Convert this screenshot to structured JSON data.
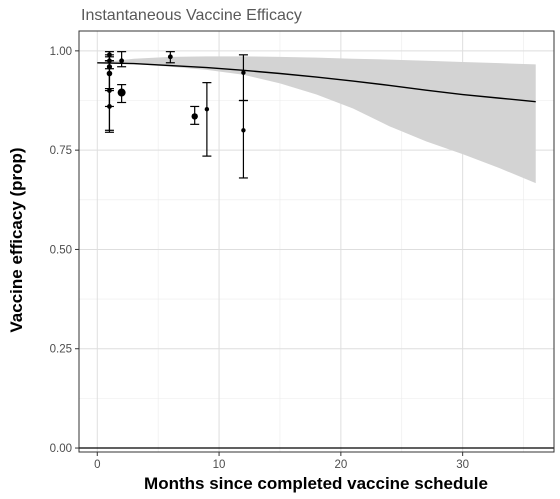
{
  "chart_data": {
    "type": "line",
    "title": "Instantaneous Vaccine Efficacy",
    "xlabel": "Months since completed vaccine schedule",
    "ylabel": "Vaccine efficacy (prop)",
    "xlim": [
      -1.5,
      37.5
    ],
    "ylim": [
      -0.01,
      1.05
    ],
    "x_ticks": [
      0,
      10,
      20,
      30
    ],
    "y_ticks": [
      0.0,
      0.25,
      0.5,
      0.75,
      1.0
    ],
    "y_tick_labels": [
      "0.00",
      "0.25",
      "0.50",
      "0.75",
      "1.00"
    ],
    "grid": true,
    "reference_line_y": 0,
    "series": [
      {
        "kind": "line",
        "x": [
          0,
          3,
          6,
          9,
          12,
          15,
          18,
          21,
          24,
          27,
          30,
          33,
          36
        ],
        "y": [
          0.97,
          0.968,
          0.963,
          0.958,
          0.951,
          0.943,
          0.934,
          0.924,
          0.913,
          0.901,
          0.89,
          0.881,
          0.872
        ],
        "lower": [
          0.97,
          0.967,
          0.96,
          0.952,
          0.94,
          0.918,
          0.89,
          0.855,
          0.81,
          0.772,
          0.74,
          0.705,
          0.667
        ],
        "upper": [
          0.97,
          0.98,
          0.985,
          0.986,
          0.986,
          0.985,
          0.983,
          0.98,
          0.978,
          0.975,
          0.972,
          0.969,
          0.966
        ],
        "line_color": "#000000",
        "band_color": "#d3d3d3"
      },
      {
        "kind": "points_with_errorbars",
        "color": "#000000",
        "points": [
          {
            "x": 1,
            "y": 0.99,
            "low": 0.975,
            "high": 0.998,
            "size": 2.4
          },
          {
            "x": 1,
            "y": 0.975,
            "low": 0.955,
            "high": 0.99,
            "size": 2.4
          },
          {
            "x": 1,
            "y": 0.96,
            "low": 0.905,
            "high": 0.985,
            "size": 2.6
          },
          {
            "x": 1,
            "y": 0.943,
            "low": 0.86,
            "high": 0.975,
            "size": 2.8
          },
          {
            "x": 1,
            "y": 0.86,
            "low": 0.8,
            "high": 0.9,
            "size": 2.4
          },
          {
            "x": 1,
            "y": 0.9,
            "low": 0.795,
            "high": 0.975,
            "size": 2.4
          },
          {
            "x": 2,
            "y": 0.975,
            "low": 0.96,
            "high": 0.998,
            "size": 2.4
          },
          {
            "x": 2,
            "y": 0.895,
            "low": 0.87,
            "high": 0.915,
            "size": 4
          },
          {
            "x": 6,
            "y": 0.985,
            "low": 0.97,
            "high": 0.998,
            "size": 2.4
          },
          {
            "x": 8,
            "y": 0.835,
            "low": 0.815,
            "high": 0.86,
            "size": 3.2
          },
          {
            "x": 9,
            "y": 0.853,
            "low": 0.735,
            "high": 0.92,
            "size": 2.2
          },
          {
            "x": 12,
            "y": 0.945,
            "low": 0.875,
            "high": 0.99,
            "size": 2.2
          },
          {
            "x": 12,
            "y": 0.8,
            "low": 0.68,
            "high": 0.875,
            "size": 2.2
          }
        ]
      }
    ]
  }
}
